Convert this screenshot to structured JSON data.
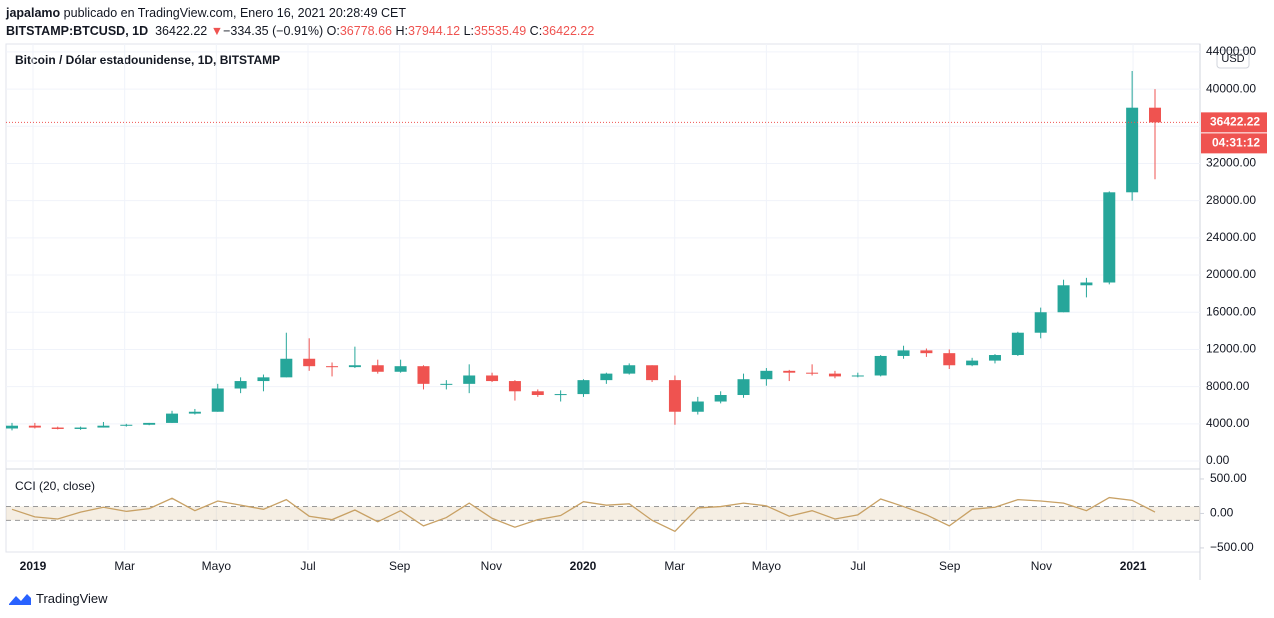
{
  "header": {
    "author": "japalamo",
    "published": "publicado en TradingView.com, Enero 16, 2021 20:28:49 CET",
    "symbol": "BITSTAMP:BTCUSD, 1D",
    "last": "36422.22",
    "arrow": "▼",
    "change": "−334.35 (−0.91%)",
    "o_label": "O:",
    "open": "36778.66",
    "h_label": "H:",
    "high": "37944.12",
    "l_label": "L:",
    "low": "35535.49",
    "c_label": "C:",
    "close": "36422.22"
  },
  "chart_data": {
    "type": "candlestick",
    "title": "Bitcoin / Dólar estadounidense, 1D, BITSTAMP",
    "currency": "USD",
    "last_price": 36422.22,
    "countdown": "04:31:12",
    "up_color": "#26a69a",
    "down_color": "#ef5350",
    "categories": [
      null,
      null,
      null,
      null,
      null,
      null,
      null,
      null,
      null,
      null,
      null,
      null,
      null,
      null,
      null,
      null,
      null,
      null,
      null,
      null,
      null,
      null,
      null,
      null,
      null,
      null,
      null,
      null,
      null,
      null,
      null,
      null,
      null,
      null,
      null,
      null,
      null,
      null,
      null,
      null,
      null,
      null,
      null,
      null,
      null,
      null,
      null,
      null,
      null,
      null,
      null
    ],
    "open": [
      3500,
      3800,
      3600,
      3450,
      3600,
      3800,
      3900,
      4100,
      5100,
      5300,
      7800,
      8600,
      9000,
      11000,
      10200,
      10100,
      10300,
      9600,
      10200,
      8300,
      8300,
      9200,
      8600,
      7500,
      7100,
      7200,
      8700,
      9400,
      10300,
      8700,
      5300,
      6400,
      7100,
      8800,
      9700,
      9500,
      9400,
      9100,
      9200,
      11300,
      11900,
      11600,
      10300,
      10800,
      11400,
      13800,
      16000,
      18900,
      19200,
      28900,
      38000
    ],
    "high": [
      4100,
      4100,
      3700,
      3700,
      4200,
      4000,
      4100,
      5400,
      5600,
      8300,
      9000,
      9300,
      13800,
      13200,
      10600,
      12300,
      10900,
      10900,
      10300,
      8700,
      10400,
      9500,
      8700,
      7700,
      7600,
      8800,
      9500,
      10500,
      10300,
      9200,
      6900,
      7500,
      9400,
      10000,
      9800,
      10400,
      9700,
      9500,
      11400,
      12400,
      12100,
      12000,
      11100,
      11500,
      13900,
      16500,
      19500,
      19700,
      29000,
      41950,
      40000
    ],
    "low": [
      3300,
      3500,
      3400,
      3350,
      3600,
      3700,
      3850,
      4100,
      5000,
      5300,
      7300,
      7500,
      9000,
      9700,
      9100,
      10000,
      9400,
      9500,
      7700,
      7700,
      7300,
      8500,
      6500,
      6900,
      6400,
      6900,
      8300,
      9300,
      8500,
      3900,
      5000,
      6200,
      6800,
      8100,
      8600,
      9200,
      8900,
      9000,
      9100,
      11000,
      11200,
      9900,
      10200,
      10500,
      11300,
      13200,
      16000,
      17600,
      19000,
      28000,
      30300
    ],
    "close": [
      3800,
      3600,
      3450,
      3600,
      3800,
      3900,
      4100,
      5100,
      5300,
      7800,
      8600,
      9000,
      11000,
      10200,
      10100,
      10300,
      9600,
      10200,
      8300,
      8300,
      9200,
      8600,
      7500,
      7100,
      7200,
      8700,
      9400,
      10300,
      8700,
      5300,
      6400,
      7100,
      8800,
      9700,
      9500,
      9400,
      9100,
      9200,
      11300,
      11900,
      11600,
      10300,
      10800,
      11400,
      13800,
      16000,
      18900,
      19200,
      28900,
      38000,
      36422.22
    ],
    "ylim": [
      -750,
      44850
    ],
    "yticks": [
      {
        "value": 0,
        "label": "0.00"
      },
      {
        "value": 4000,
        "label": "4000.00"
      },
      {
        "value": 8000,
        "label": "8000.00"
      },
      {
        "value": 12000,
        "label": "12000.00"
      },
      {
        "value": 16000,
        "label": "16000.00"
      },
      {
        "value": 20000,
        "label": "20000.00"
      },
      {
        "value": 24000,
        "label": "24000.00"
      },
      {
        "value": 28000,
        "label": "28000.00"
      },
      {
        "value": 32000,
        "label": "32000.00"
      },
      {
        "value": 36000,
        "label": "36000.00"
      },
      {
        "value": 40000,
        "label": "40000.00"
      },
      {
        "value": 44000,
        "label": "44000.00"
      }
    ],
    "xlabels": [
      "2019",
      "Mar",
      "Mayo",
      "Jul",
      "Sep",
      "Nov",
      "2020",
      "Mar",
      "Mayo",
      "Jul",
      "Sep",
      "Nov",
      "2021"
    ],
    "indicator": {
      "title": "CCI (20, close)",
      "color": "#c8a165",
      "values": [
        60,
        -50,
        -80,
        20,
        90,
        30,
        70,
        220,
        40,
        180,
        120,
        60,
        200,
        -40,
        -90,
        50,
        -120,
        40,
        -180,
        -60,
        150,
        -70,
        -200,
        -90,
        -30,
        170,
        120,
        140,
        -100,
        -260,
        80,
        100,
        150,
        110,
        -40,
        40,
        -80,
        -20,
        210,
        100,
        -20,
        -180,
        60,
        90,
        200,
        180,
        150,
        40,
        230,
        190,
        20
      ],
      "band": [
        -100,
        100
      ],
      "ylim": [
        -530,
        630
      ],
      "yticks": [
        {
          "value": 500,
          "label": "500.00"
        },
        {
          "value": 0,
          "label": "0.00"
        },
        {
          "value": -500,
          "label": "−500.00"
        }
      ]
    }
  },
  "footer": {
    "logo": "TradingView"
  }
}
